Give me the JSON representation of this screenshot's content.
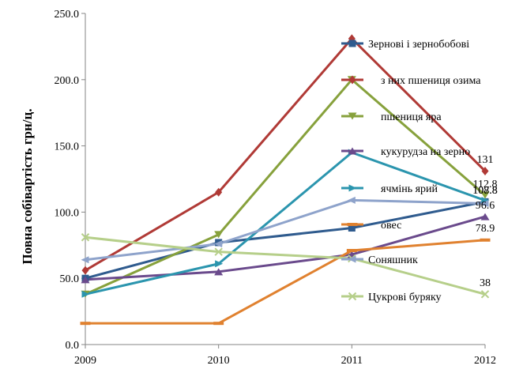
{
  "chart_data": {
    "type": "line",
    "title": "",
    "xlabel": "",
    "ylabel": "Повна собівартість грн/ц.",
    "x": [
      "2009",
      "2010",
      "2011",
      "2012"
    ],
    "ylim": [
      0,
      250
    ],
    "yticks": [
      "0.0",
      "50.0",
      "100.0",
      "150.0",
      "200.0",
      "250.0"
    ],
    "grid": "none",
    "legend_position": "right",
    "series": [
      {
        "name": "Зернові і зернобобові",
        "values": [
          50,
          77,
          88,
          107.8
        ],
        "color": "#2f5b8e",
        "marker": "square"
      },
      {
        "name": "з них пшениця озима",
        "values": [
          56,
          115,
          231,
          131
        ],
        "color": "#b03a36",
        "marker": "diamond"
      },
      {
        "name": "пшениця яра",
        "values": [
          38,
          83,
          200,
          112.8
        ],
        "color": "#87a13c",
        "marker": "triangle-down"
      },
      {
        "name": "кукурудза на зерно",
        "values": [
          49,
          55,
          68,
          96.6
        ],
        "color": "#6a4a8c",
        "marker": "triangle-up"
      },
      {
        "name": "ячмінь ярий",
        "values": [
          38,
          61,
          145,
          108.8
        ],
        "color": "#2b95ae",
        "marker": "arrow"
      },
      {
        "name": "овес",
        "values": [
          16,
          16,
          71,
          78.9
        ],
        "color": "#e0812f",
        "marker": "bar"
      },
      {
        "name": "Соняшник",
        "values": [
          64,
          76,
          109,
          106.5
        ],
        "color": "#8ea3cb",
        "marker": "arrow-left"
      },
      {
        "name": "Цукрові буряку",
        "values": [
          81,
          70,
          65,
          38
        ],
        "color": "#b6cf8a",
        "marker": "x"
      }
    ],
    "data_labels": [
      {
        "text": "131",
        "series": 1,
        "index": 3
      },
      {
        "text": "112.8",
        "series": 2,
        "index": 3
      },
      {
        "text": "108.8",
        "series": 4,
        "index": 3
      },
      {
        "text": "107.8",
        "series": 0,
        "index": 3
      },
      {
        "text": "96.6",
        "series": 3,
        "index": 3
      },
      {
        "text": "78.9",
        "series": 5,
        "index": 3
      },
      {
        "text": "38",
        "series": 7,
        "index": 3
      }
    ]
  }
}
